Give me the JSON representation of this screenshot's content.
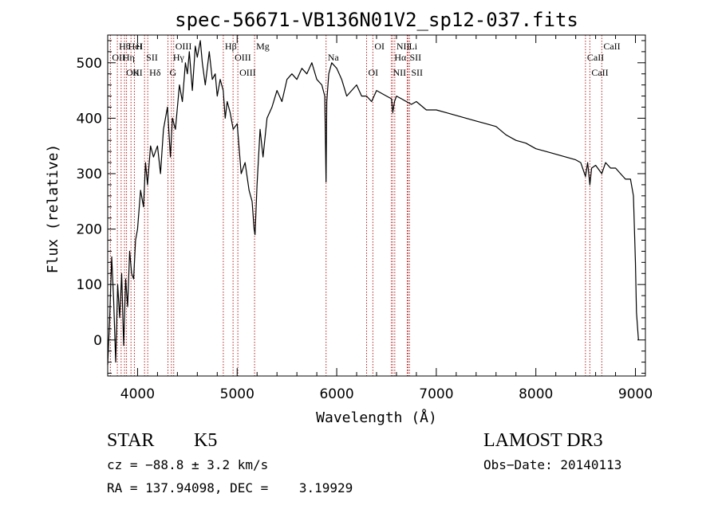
{
  "chart_data": {
    "type": "line",
    "title": "spec-56671-VB136N01V2_sp12-037.fits",
    "xlabel": "Wavelength (Å)",
    "ylabel": "Flux (relative)",
    "xlim": [
      3700,
      9100
    ],
    "ylim": [
      -65,
      550
    ],
    "x_ticks": [
      4000,
      5000,
      6000,
      7000,
      8000,
      9000
    ],
    "x_tick_labels": [
      "4000",
      "5000",
      "6000",
      "7000",
      "8000",
      "9000"
    ],
    "y_ticks": [
      0,
      100,
      200,
      300,
      400,
      500
    ],
    "y_tick_labels": [
      "0",
      "100",
      "200",
      "300",
      "400",
      "500"
    ],
    "grid": false,
    "series": [
      {
        "color": "#000000",
        "x": [
          3700,
          3720,
          3740,
          3760,
          3780,
          3800,
          3820,
          3840,
          3860,
          3880,
          3900,
          3920,
          3940,
          3960,
          3980,
          4000,
          4030,
          4060,
          4080,
          4100,
          4130,
          4160,
          4200,
          4230,
          4260,
          4300,
          4330,
          4350,
          4380,
          4420,
          4450,
          4480,
          4500,
          4520,
          4550,
          4580,
          4600,
          4630,
          4650,
          4680,
          4700,
          4720,
          4750,
          4780,
          4800,
          4830,
          4860,
          4880,
          4900,
          4930,
          4960,
          5000,
          5040,
          5080,
          5120,
          5150,
          5170,
          5180,
          5200,
          5230,
          5260,
          5300,
          5350,
          5400,
          5450,
          5500,
          5550,
          5600,
          5650,
          5700,
          5750,
          5800,
          5850,
          5880,
          5893,
          5900,
          5920,
          5950,
          6000,
          6050,
          6100,
          6150,
          6200,
          6250,
          6300,
          6350,
          6400,
          6450,
          6500,
          6550,
          6563,
          6580,
          6600,
          6650,
          6700,
          6750,
          6800,
          6900,
          7000,
          7100,
          7200,
          7300,
          7400,
          7500,
          7600,
          7700,
          7800,
          7900,
          8000,
          8100,
          8200,
          8300,
          8400,
          8450,
          8498,
          8520,
          8542,
          8560,
          8600,
          8662,
          8700,
          8750,
          8800,
          8850,
          8900,
          8950,
          8980,
          9000,
          9010,
          9030
        ],
        "y": [
          -45,
          40,
          150,
          70,
          -40,
          100,
          40,
          120,
          -10,
          110,
          60,
          160,
          120,
          110,
          180,
          200,
          270,
          240,
          320,
          280,
          350,
          330,
          350,
          300,
          380,
          420,
          330,
          400,
          380,
          460,
          430,
          500,
          480,
          520,
          450,
          530,
          510,
          540,
          500,
          460,
          490,
          520,
          470,
          480,
          440,
          470,
          450,
          400,
          430,
          410,
          380,
          390,
          300,
          320,
          270,
          250,
          200,
          190,
          280,
          380,
          330,
          400,
          420,
          450,
          430,
          470,
          480,
          470,
          490,
          480,
          500,
          470,
          460,
          440,
          285,
          430,
          480,
          500,
          490,
          470,
          440,
          450,
          460,
          440,
          440,
          430,
          450,
          445,
          440,
          435,
          410,
          430,
          440,
          435,
          430,
          425,
          430,
          415,
          415,
          410,
          405,
          400,
          395,
          390,
          385,
          370,
          360,
          355,
          345,
          340,
          335,
          330,
          325,
          320,
          295,
          320,
          280,
          310,
          315,
          300,
          320,
          310,
          310,
          300,
          290,
          290,
          260,
          140,
          50,
          0
        ]
      }
    ],
    "lines": [
      {
        "label": "Hθ",
        "x": 3797
      },
      {
        "label": "OII",
        "x": 3727
      },
      {
        "label": "OIII",
        "x": 3869
      },
      {
        "label": "HeI",
        "x": 3889
      },
      {
        "label": "Hη",
        "x": 3835
      },
      {
        "label": "K",
        "x": 3934
      },
      {
        "label": "H",
        "x": 3968
      },
      {
        "label": "SII",
        "x": 4070
      },
      {
        "label": "Hδ",
        "x": 4102
      },
      {
        "label": "OIII",
        "x": 4363
      },
      {
        "label": "Hγ",
        "x": 4340
      },
      {
        "label": "G",
        "x": 4305
      },
      {
        "label": "Hβ",
        "x": 4861
      },
      {
        "label": "OIII",
        "x": 4959
      },
      {
        "label": "OIII",
        "x": 5007
      },
      {
        "label": "Mg",
        "x": 5175
      },
      {
        "label": "Na",
        "x": 5893
      },
      {
        "label": "OI",
        "x": 6300
      },
      {
        "label": "OI",
        "x": 6363
      },
      {
        "label": "Hα",
        "x": 6563
      },
      {
        "label": "NII",
        "x": 6548
      },
      {
        "label": "NII",
        "x": 6583
      },
      {
        "label": "SII",
        "x": 6716
      },
      {
        "label": "SII",
        "x": 6731
      },
      {
        "label": "Li",
        "x": 6708
      },
      {
        "label": "CaII",
        "x": 8498
      },
      {
        "label": "CaII",
        "x": 8542
      },
      {
        "label": "CaII",
        "x": 8662
      }
    ]
  },
  "info": {
    "class_label": "STAR",
    "subclass_label": "K5",
    "survey": "LAMOST DR3",
    "cz": "cz = −88.8 ± 3.2 km/s",
    "obs_date": "Obs−Date: 20140113",
    "radec": "RA = 137.94098, DEC =    3.19929"
  },
  "colors": {
    "line_marker": "#b22222",
    "spectrum": "#000000",
    "background": "#ffffff"
  }
}
